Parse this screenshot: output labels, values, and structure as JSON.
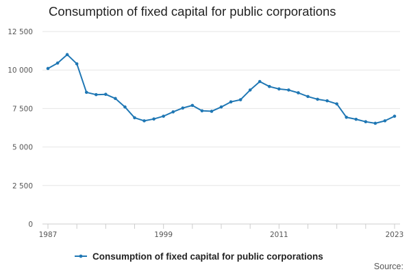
{
  "chart_data": {
    "type": "line",
    "title": "Consumption of fixed capital for public corporations",
    "xlabel": "",
    "ylabel": "",
    "x": [
      1987,
      1988,
      1989,
      1990,
      1991,
      1992,
      1993,
      1994,
      1995,
      1996,
      1997,
      1998,
      1999,
      2000,
      2001,
      2002,
      2003,
      2004,
      2005,
      2006,
      2007,
      2008,
      2009,
      2010,
      2011,
      2012,
      2013,
      2014,
      2015,
      2016,
      2017,
      2018,
      2019,
      2020,
      2021,
      2022,
      2023
    ],
    "series": [
      {
        "name": "Consumption of fixed capital for public corporations",
        "color": "#1f77b4",
        "values": [
          10100,
          10450,
          11000,
          10400,
          8550,
          8400,
          8420,
          8150,
          7600,
          6900,
          6700,
          6820,
          7000,
          7280,
          7530,
          7700,
          7350,
          7320,
          7600,
          7930,
          8070,
          8700,
          9250,
          8930,
          8770,
          8700,
          8520,
          8280,
          8100,
          8000,
          7800,
          6930,
          6800,
          6640,
          6540,
          6700,
          7000
        ]
      }
    ],
    "xlim": [
      1987,
      2023
    ],
    "ylim": [
      0,
      12500
    ],
    "yticks": [
      0,
      2500,
      5000,
      7500,
      10000,
      12500
    ],
    "ytick_labels": [
      "0",
      "2 500",
      "5 000",
      "7 500",
      "10 000",
      "12 500"
    ],
    "xticks": [
      1987,
      1999,
      2011,
      2023
    ],
    "xtick_labels": [
      "1987",
      "1999",
      "2011",
      "2023"
    ],
    "grid": true,
    "legend_position": "bottom"
  },
  "source_label": "Source:"
}
